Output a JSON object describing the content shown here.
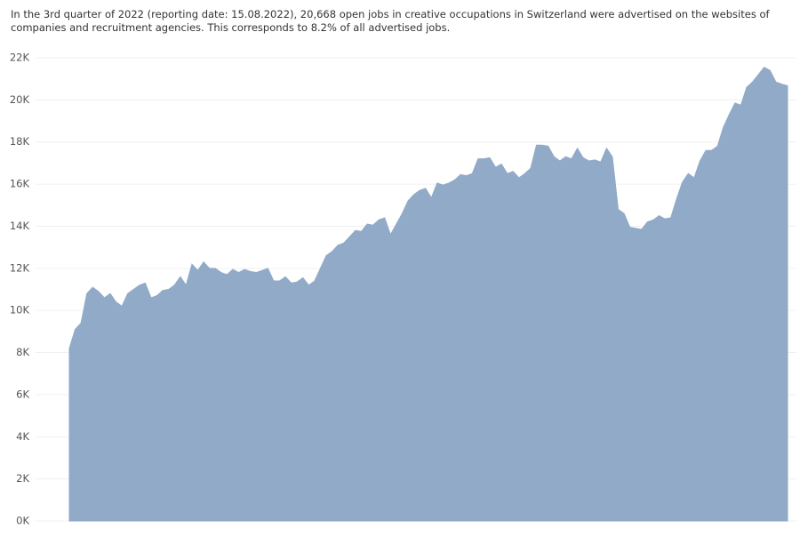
{
  "chart_data": {
    "type": "area",
    "title": "In the 3rd quarter of 2022 (reporting date: 15.08.2022), 20,668 open jobs in creative occupations in Switzerland were advertised on the websites of companies and recruitment agencies. This corresponds to 8.2% of all advertised jobs.",
    "color": "#90aac8",
    "values": [
      8200,
      9100,
      9400,
      10800,
      11100,
      10900,
      10600,
      10800,
      10400,
      10200,
      10800,
      11000,
      11200,
      11300,
      10600,
      10700,
      10950,
      11000,
      11200,
      11600,
      11200,
      12200,
      11900,
      12300,
      12000,
      12000,
      11800,
      11700,
      11950,
      11800,
      11950,
      11850,
      11800,
      11900,
      12000,
      11400,
      11400,
      11600,
      11300,
      11350,
      11550,
      11200,
      11400,
      12000,
      12600,
      12800,
      13100,
      13200,
      13500,
      13800,
      13750,
      14100,
      14050,
      14300,
      14400,
      13600,
      14100,
      14600,
      15200,
      15500,
      15700,
      15800,
      15350,
      16050,
      15950,
      16050,
      16200,
      16450,
      16400,
      16500,
      17200,
      17200,
      17250,
      16800,
      16950,
      16500,
      16600,
      16300,
      16500,
      16750,
      17850,
      17850,
      17800,
      17300,
      17100,
      17300,
      17200,
      17700,
      17250,
      17100,
      17150,
      17050,
      17700,
      17300,
      14800,
      14600,
      13950,
      13900,
      13850,
      14200,
      14300,
      14500,
      14350,
      14400,
      15300,
      16100,
      16500,
      16300,
      17100,
      17600,
      17600,
      17800,
      18700,
      19300,
      19850,
      19750,
      20600,
      20850,
      21200,
      21550,
      21400,
      20850,
      20750,
      20668
    ],
    "ylim": [
      0,
      22000
    ],
    "yticks": [
      {
        "value": 0,
        "label": "0K"
      },
      {
        "value": 2000,
        "label": "2K"
      },
      {
        "value": 4000,
        "label": "4K"
      },
      {
        "value": 6000,
        "label": "6K"
      },
      {
        "value": 8000,
        "label": "8K"
      },
      {
        "value": 10000,
        "label": "10K"
      },
      {
        "value": 12000,
        "label": "12K"
      },
      {
        "value": 14000,
        "label": "14K"
      },
      {
        "value": 16000,
        "label": "16K"
      },
      {
        "value": 18000,
        "label": "18K"
      },
      {
        "value": 20000,
        "label": "20K"
      },
      {
        "value": 22000,
        "label": "22K"
      }
    ],
    "grid": true
  }
}
